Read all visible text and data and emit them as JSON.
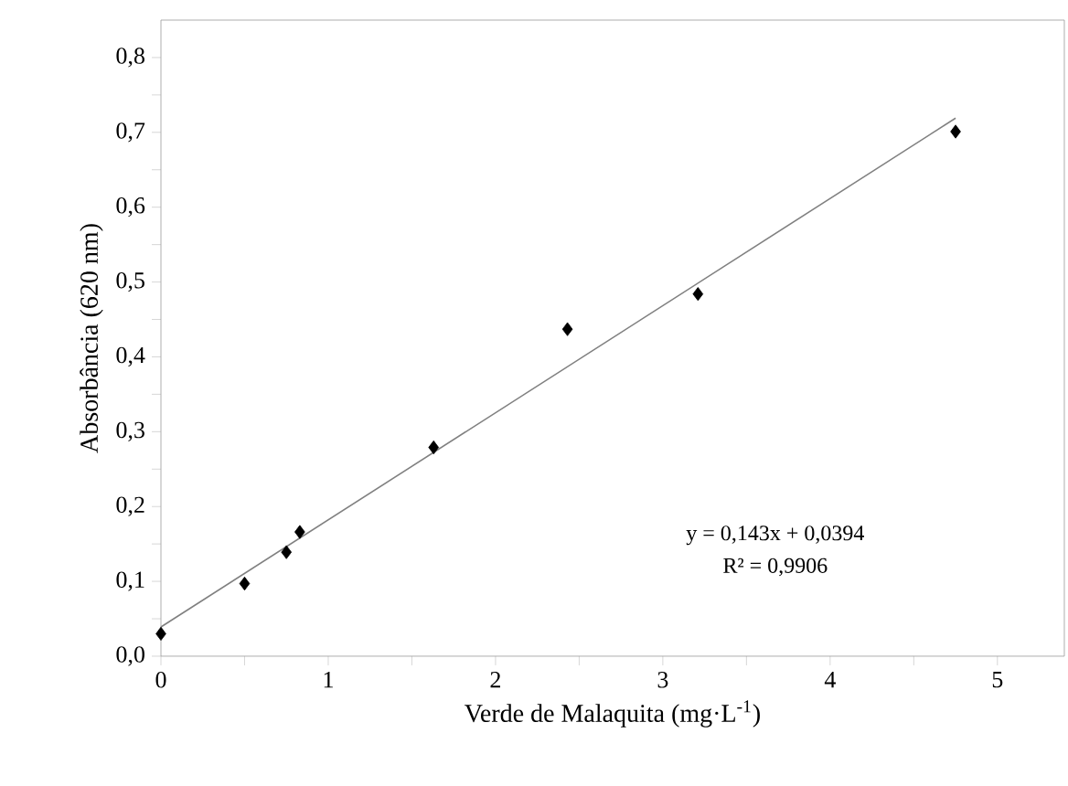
{
  "chart_data": {
    "type": "scatter",
    "xlabel": "Verde de Malaquita (mg·L$^{-1}$)",
    "ylabel": "Absorbância (620 nm)",
    "x": [
      0.0,
      0.5,
      0.75,
      0.83,
      1.63,
      2.43,
      3.21,
      4.75
    ],
    "series": [
      {
        "color": "#000000",
        "marker": "diamond",
        "values": [
          0.03,
          0.097,
          0.139,
          0.166,
          0.279,
          0.437,
          0.484,
          0.701
        ]
      },
      {
        "type": "line",
        "color": "#808080",
        "x": [
          0.0,
          4.75
        ],
        "values": [
          0.039,
          0.719
        ]
      }
    ],
    "xlim": [
      0,
      5.4
    ],
    "ylim": [
      0,
      0.85
    ],
    "xticks": [
      0,
      1,
      2,
      3,
      4,
      5
    ],
    "yticks": [
      {
        "value": 0,
        "label": "0,0"
      },
      {
        "value": 0.1,
        "label": "0,1"
      },
      {
        "value": 0.2,
        "label": "0,2"
      },
      {
        "value": 0.3,
        "label": "0,3"
      },
      {
        "value": 0.4,
        "label": "0,4"
      },
      {
        "value": 0.5,
        "label": "0,5"
      },
      {
        "value": 0.6,
        "label": "0,6"
      },
      {
        "value": 0.7,
        "label": "0,7"
      },
      {
        "value": 0.8,
        "label": "0,8"
      }
    ],
    "annotations": [
      "y = 0,143x + 0,0394",
      "R² = 0,9906"
    ],
    "grid": false
  }
}
